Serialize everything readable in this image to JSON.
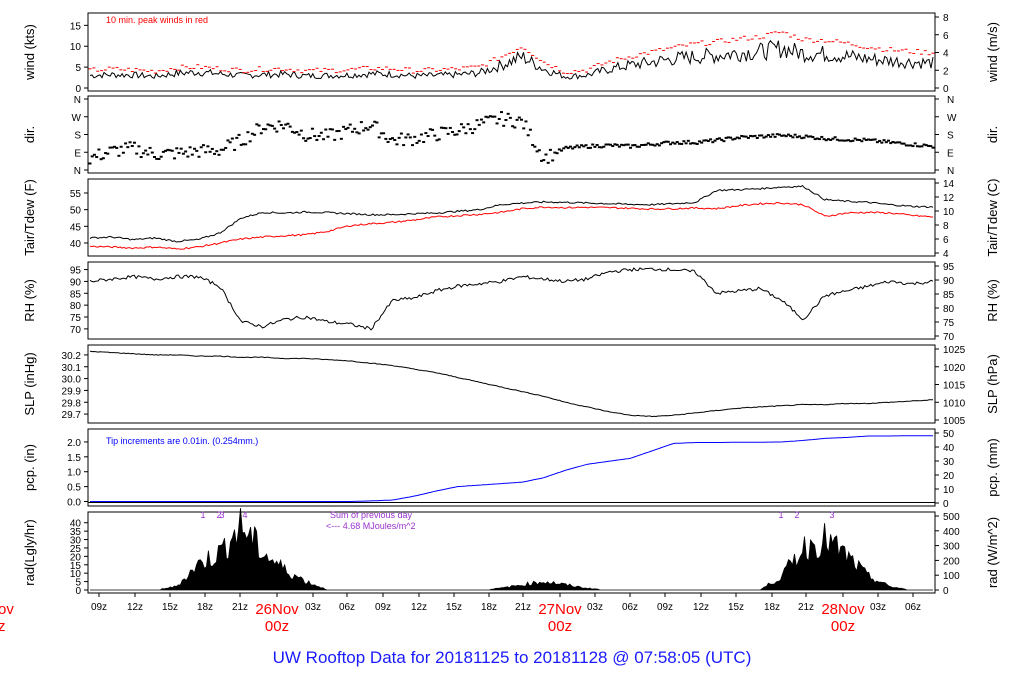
{
  "title": "UW Rooftop Data for 20181125  to  20181128 @ 07:58:05  (UTC)",
  "colors": {
    "axis": "#000000",
    "peak": "#ff0000",
    "dew": "#ff0000",
    "precip": "#0000ff",
    "note": "#9933cc",
    "date": "#ff0000"
  },
  "chart_data": [
    {
      "type": "line",
      "id": "wind",
      "ylabel": "wind (kts)",
      "ylabel2": "wind (m/s)",
      "yticks": [
        0,
        5,
        10,
        15
      ],
      "yticks2": [
        0,
        2,
        4,
        6,
        8
      ],
      "ylim": [
        0,
        17
      ],
      "annotation": "10 min. peak winds in red",
      "series": [
        {
          "values": [
            3,
            3.2,
            3.1,
            2.8,
            3.5,
            3.8,
            3.4,
            3.0,
            3.2,
            3.3,
            2.9,
            3.0,
            3.1,
            3.4,
            3.3,
            2.9,
            3.0,
            3.2,
            3.6,
            5.4,
            7.5,
            4.5,
            2.7,
            3.1,
            4.5,
            5.5,
            6.2,
            7.0,
            7.5,
            7.8,
            8.4,
            8.7,
            9.5,
            8.3,
            8.2,
            7.6,
            7.0,
            6.5,
            6.2,
            6.0
          ]
        },
        {
          "values": [
            4,
            4.3,
            4.1,
            3.8,
            4.6,
            4.8,
            4.4,
            4.0,
            4.3,
            4.4,
            3.9,
            4.0,
            4.1,
            4.5,
            4.4,
            3.9,
            4.1,
            4.3,
            4.8,
            7.1,
            9.8,
            6.0,
            3.6,
            4.1,
            6.0,
            7.3,
            8.4,
            9.4,
            10.3,
            10.8,
            11.5,
            12.0,
            13.2,
            11.4,
            11.2,
            10.5,
            9.6,
            8.9,
            8.5,
            8.2
          ]
        }
      ]
    },
    {
      "type": "scatter",
      "id": "dir",
      "ylabel": "dir.",
      "yticks": [
        "N",
        "E",
        "S",
        "W",
        "N"
      ],
      "yticks2": [
        "N",
        "E",
        "S",
        "W",
        "N"
      ],
      "series": [
        {
          "values": [
            60,
            95,
            110,
            80,
            85,
            95,
            100,
            150,
            220,
            230,
            180,
            170,
            200,
            230,
            150,
            160,
            180,
            200,
            230,
            260,
            245,
            60,
            110,
            120,
            125,
            120,
            130,
            140,
            140,
            150,
            165,
            170,
            175,
            170,
            160,
            155,
            150,
            140,
            130,
            120
          ]
        }
      ]
    },
    {
      "type": "line",
      "id": "temp",
      "ylabel": "Tair/Tdew (F)",
      "ylabel2": "Tair/Tdew (C)",
      "yticks": [
        40,
        45,
        50,
        55
      ],
      "yticks2": [
        4,
        6,
        8,
        10,
        12,
        14
      ],
      "ylim": [
        37,
        58
      ],
      "series": [
        {
          "values": [
            41.5,
            41.8,
            41.0,
            41.5,
            40.5,
            41.0,
            43.0,
            47.5,
            49.2,
            49.0,
            49.3,
            49.1,
            48.8,
            48.5,
            48.5,
            48.8,
            49.0,
            49.5,
            50.0,
            51.5,
            52.0,
            52.3,
            52.2,
            52.0,
            51.8,
            51.6,
            51.5,
            51.8,
            52.2,
            55.8,
            56.0,
            56.3,
            56.8,
            57.0,
            53.0,
            52.5,
            52.2,
            51.5,
            51.0,
            50.8
          ]
        },
        {
          "values": [
            39.0,
            38.8,
            38.5,
            38.8,
            38.2,
            38.8,
            40.0,
            41.2,
            41.8,
            42.2,
            42.5,
            43.5,
            45.2,
            45.8,
            46.2,
            46.9,
            47.8,
            48.2,
            48.6,
            49.2,
            50.3,
            50.8,
            50.6,
            50.7,
            50.6,
            50.4,
            50.2,
            50.3,
            50.5,
            50.3,
            51.2,
            51.8,
            52.0,
            51.5,
            48.0,
            49.0,
            49.2,
            49.0,
            48.3,
            47.8
          ]
        }
      ]
    },
    {
      "type": "line",
      "id": "rh",
      "ylabel": "RH (%)",
      "ylabel2": "RH (%)",
      "yticks": [
        70,
        75,
        80,
        85,
        90,
        95
      ],
      "yticks2": [
        70,
        75,
        80,
        85,
        90,
        95
      ],
      "ylim": [
        67,
        96.5
      ],
      "series": [
        {
          "values": [
            90,
            91,
            92,
            91,
            92,
            92,
            88,
            73,
            71,
            74,
            75,
            73,
            72,
            70,
            82,
            83,
            86,
            88,
            89,
            90,
            92,
            91,
            90,
            91,
            94,
            95,
            95.2,
            95,
            94,
            85,
            86,
            87,
            82,
            74,
            84,
            86,
            88,
            90,
            89,
            90
          ]
        }
      ]
    },
    {
      "type": "line",
      "id": "slp",
      "ylabel": "SLP (inHg)",
      "ylabel2": "SLP (hPa)",
      "yticks": [
        29.7,
        29.8,
        29.9,
        30.0,
        30.1,
        30.2
      ],
      "yticks2": [
        1005,
        1010,
        1015,
        1020,
        1025
      ],
      "ylim": [
        29.65,
        30.25
      ],
      "series": [
        {
          "values": [
            30.23,
            30.22,
            30.21,
            30.2,
            30.2,
            30.19,
            30.19,
            30.18,
            30.18,
            30.17,
            30.17,
            30.16,
            30.15,
            30.13,
            30.11,
            30.08,
            30.05,
            30.01,
            29.97,
            29.93,
            29.89,
            29.85,
            29.8,
            29.76,
            29.72,
            29.69,
            29.68,
            29.69,
            29.71,
            29.73,
            29.75,
            29.76,
            29.77,
            29.78,
            29.78,
            29.79,
            29.79,
            29.8,
            29.81,
            29.82
          ]
        }
      ]
    },
    {
      "type": "area",
      "id": "pcp",
      "ylabel": "pcp. (in)",
      "ylabel2": "pcp. (mm)",
      "yticks": [
        0.0,
        0.5,
        1.0,
        1.5,
        2.0
      ],
      "yticks2": [
        0,
        10,
        20,
        30,
        40,
        50
      ],
      "ylim": [
        -0.05,
        2.3
      ],
      "annotation": "Tip increments are 0.01in. (0.254mm.)",
      "series": [
        {
          "values": [
            0,
            0,
            0,
            0,
            0,
            0,
            0,
            0,
            0,
            0,
            0,
            0,
            0,
            0.02,
            0.05,
            0.18,
            0.35,
            0.5,
            0.55,
            0.6,
            0.65,
            0.8,
            1.05,
            1.25,
            1.35,
            1.45,
            1.7,
            1.95,
            1.98,
            1.98,
            1.99,
            1.99,
            2.0,
            2.05,
            2.12,
            2.15,
            2.2,
            2.2,
            2.21,
            2.21
          ]
        }
      ]
    },
    {
      "type": "area",
      "id": "rad",
      "ylabel": "rad(Lgly/hr)",
      "ylabel2": "rad (W/m^2)",
      "yticks": [
        0,
        5,
        10,
        15,
        20,
        25,
        30,
        35,
        40
      ],
      "yticks2": [
        0,
        100,
        200,
        300,
        400,
        500
      ],
      "ylim": [
        0,
        44
      ],
      "annotation": [
        "Sum of previous day",
        "<--- 4.68 MJoules/m^2"
      ],
      "markers": [
        "1",
        "2",
        "3",
        "4",
        "1",
        "2",
        "3"
      ],
      "series": [
        {
          "values": [
            0,
            0,
            0,
            0,
            2,
            15,
            22,
            38,
            22,
            12,
            5,
            0,
            0,
            0,
            0,
            0,
            0,
            0,
            0,
            1,
            3,
            5,
            3,
            1,
            0,
            0,
            0,
            0,
            0,
            0,
            0,
            0,
            8,
            25,
            30,
            20,
            8,
            2,
            0,
            0
          ]
        }
      ]
    }
  ],
  "x_ticks": [
    "09z",
    "12z",
    "15z",
    "18z",
    "21z",
    "26Nov",
    "03z",
    "06z",
    "09z",
    "12z",
    "15z",
    "18z",
    "21z",
    "27Nov",
    "03z",
    "06z",
    "09z",
    "12z",
    "15z",
    "18z",
    "21z",
    "28Nov",
    "03z",
    "06z"
  ],
  "date_labels": [
    "00z",
    "00z",
    "00z"
  ],
  "left_edge_labels": [
    "ov",
    "z"
  ]
}
